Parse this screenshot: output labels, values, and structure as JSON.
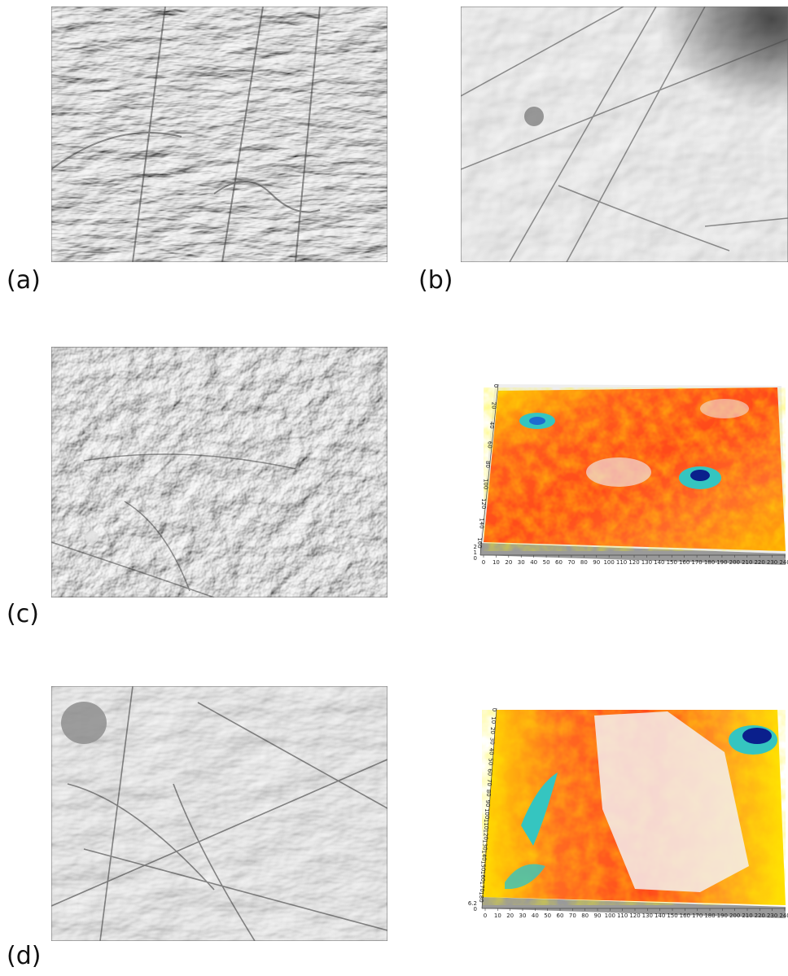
{
  "panels": {
    "a": {
      "label": "(a)",
      "kind": "grayscale-surface-micrograph"
    },
    "b": {
      "label": "(b)",
      "kind": "grayscale-surface-micrograph"
    },
    "c": {
      "label": "(c)",
      "kind": "grayscale-surface-micrograph"
    },
    "d": {
      "label": "(d)",
      "kind": "grayscale-surface-micrograph"
    }
  },
  "surface_c": {
    "kind": "3d-height-map",
    "x_ticks": [
      "0",
      "10",
      "20",
      "30",
      "40",
      "50",
      "60",
      "70",
      "80",
      "90",
      "100",
      "110",
      "120",
      "130",
      "140",
      "150",
      "160",
      "170",
      "180",
      "190",
      "200",
      "210",
      "220",
      "230",
      "240"
    ],
    "y_ticks": [
      "0",
      "20",
      "40",
      "60",
      "80",
      "100",
      "120",
      "140",
      "160"
    ],
    "z_ticks": [
      "2",
      "1",
      "0"
    ],
    "colors": {
      "high": "#f0eeee",
      "mid": "#ff4a1a",
      "low": "#ffe000",
      "lower": "#35c5c0",
      "lowest": "#0a1f8c",
      "base": "#9a9a9a"
    }
  },
  "surface_d": {
    "kind": "3d-height-map",
    "x_ticks": [
      "0",
      "10",
      "20",
      "30",
      "40",
      "50",
      "60",
      "70",
      "80",
      "90",
      "100",
      "110",
      "120",
      "130",
      "140",
      "150",
      "160",
      "170",
      "180",
      "190",
      "200",
      "210",
      "220",
      "230",
      "240"
    ],
    "y_ticks": [
      "0",
      "10",
      "20",
      "30",
      "40",
      "50",
      "60",
      "70",
      "80",
      "90",
      "100",
      "110",
      "120",
      "130",
      "140",
      "150",
      "160",
      "170",
      "180"
    ],
    "z_ticks": [
      "6.2",
      "0"
    ],
    "colors": {
      "high": "#f4f0f0",
      "mid": "#ff4a1a",
      "low": "#ffe000",
      "lower": "#35c5c0",
      "lowest": "#0a1f8c",
      "base": "#9a9a9a"
    }
  }
}
